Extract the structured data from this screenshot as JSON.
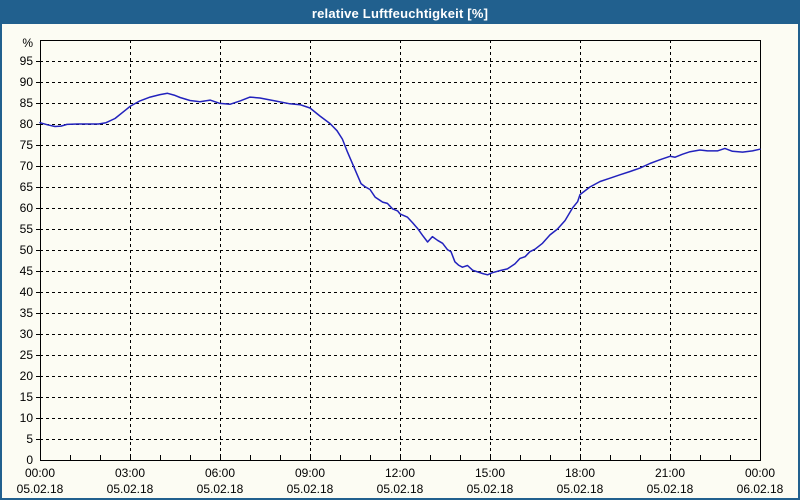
{
  "window": {
    "title": "relative Luftfeuchtigkeit [%]"
  },
  "colors": {
    "title_bar": "#21608e",
    "title_text": "#ffffff",
    "window_border": "#21608e",
    "background": "#fcfcf3",
    "plot_border": "#000000",
    "grid": "#000000",
    "tick": "#000000",
    "label_text": "#000000",
    "curve": "#2222bd"
  },
  "chart_data": {
    "type": "line",
    "title": "relative Luftfeuchtigkeit [%]",
    "ylabel": "%",
    "xlabel": "",
    "ylim": [
      0,
      100
    ],
    "xlim_hours": [
      0,
      24
    ],
    "grid": "dashed",
    "legend": "none",
    "y_unit_label": "%",
    "y_ticks": [
      0,
      5,
      10,
      15,
      20,
      25,
      30,
      35,
      40,
      45,
      50,
      55,
      60,
      65,
      70,
      75,
      80,
      85,
      90,
      95
    ],
    "x_major_step_hours": 3,
    "x_minor_step_hours": 1,
    "x_ticks": [
      {
        "hour": 0,
        "time": "00:00",
        "date": "05.02.18"
      },
      {
        "hour": 3,
        "time": "03:00",
        "date": "05.02.18"
      },
      {
        "hour": 6,
        "time": "06:00",
        "date": "05.02.18"
      },
      {
        "hour": 9,
        "time": "09:00",
        "date": "05.02.18"
      },
      {
        "hour": 12,
        "time": "12:00",
        "date": "05.02.18"
      },
      {
        "hour": 15,
        "time": "15:00",
        "date": "05.02.18"
      },
      {
        "hour": 18,
        "time": "18:00",
        "date": "05.02.18"
      },
      {
        "hour": 21,
        "time": "21:00",
        "date": "05.02.18"
      },
      {
        "hour": 24,
        "time": "00:00",
        "date": "06.02.18"
      }
    ],
    "series": [
      {
        "name": "relative Luftfeuchtigkeit",
        "unit": "%",
        "points": [
          [
            0,
            80.3
          ],
          [
            0.25,
            79.8
          ],
          [
            0.5,
            79.4
          ],
          [
            0.7,
            79.5
          ],
          [
            0.9,
            79.9
          ],
          [
            1.25,
            80
          ],
          [
            1.6,
            80
          ],
          [
            1.95,
            80
          ],
          [
            2.2,
            80.3
          ],
          [
            2.5,
            81.3
          ],
          [
            2.83,
            83.2
          ],
          [
            3,
            84.2
          ],
          [
            3.33,
            85.5
          ],
          [
            3.67,
            86.4
          ],
          [
            4,
            87
          ],
          [
            4.25,
            87.3
          ],
          [
            4.5,
            86.8
          ],
          [
            4.67,
            86.3
          ],
          [
            5,
            85.6
          ],
          [
            5.33,
            85.3
          ],
          [
            5.67,
            85.7
          ],
          [
            6,
            84.9
          ],
          [
            6.33,
            84.7
          ],
          [
            6.67,
            85.5
          ],
          [
            7,
            86.4
          ],
          [
            7.33,
            86.2
          ],
          [
            7.83,
            85.5
          ],
          [
            8.33,
            84.8
          ],
          [
            8.67,
            84.6
          ],
          [
            9,
            83.8
          ],
          [
            9.33,
            81.9
          ],
          [
            9.67,
            80.1
          ],
          [
            9.9,
            78.4
          ],
          [
            10.08,
            76.4
          ],
          [
            10.25,
            73.3
          ],
          [
            10.42,
            70.5
          ],
          [
            10.58,
            67.8
          ],
          [
            10.7,
            65.8
          ],
          [
            10.83,
            65.1
          ],
          [
            11,
            64.4
          ],
          [
            11.17,
            62.6
          ],
          [
            11.42,
            61.4
          ],
          [
            11.58,
            61.1
          ],
          [
            11.75,
            59.8
          ],
          [
            11.92,
            59.3
          ],
          [
            12,
            58.6
          ],
          [
            12.25,
            57.8
          ],
          [
            12.42,
            56.5
          ],
          [
            12.58,
            55.2
          ],
          [
            12.75,
            53.5
          ],
          [
            12.92,
            51.9
          ],
          [
            13.08,
            53.2
          ],
          [
            13.25,
            52.3
          ],
          [
            13.42,
            51.6
          ],
          [
            13.58,
            50.1
          ],
          [
            13.7,
            49.6
          ],
          [
            13.83,
            47.2
          ],
          [
            13.95,
            46.4
          ],
          [
            14.08,
            45.9
          ],
          [
            14.25,
            46.3
          ],
          [
            14.42,
            45.2
          ],
          [
            14.58,
            44.8
          ],
          [
            14.75,
            44.4
          ],
          [
            14.92,
            44.1
          ],
          [
            15.08,
            44.6
          ],
          [
            15.33,
            45.1
          ],
          [
            15.58,
            45.5
          ],
          [
            15.83,
            46.7
          ],
          [
            16,
            48
          ],
          [
            16.17,
            48.4
          ],
          [
            16.33,
            49.6
          ],
          [
            16.5,
            50.2
          ],
          [
            16.75,
            51.6
          ],
          [
            17,
            53.6
          ],
          [
            17.25,
            55
          ],
          [
            17.5,
            57
          ],
          [
            17.75,
            60
          ],
          [
            17.92,
            61.5
          ],
          [
            18,
            63.2
          ],
          [
            18.33,
            65
          ],
          [
            18.67,
            66.3
          ],
          [
            19,
            67.1
          ],
          [
            19.33,
            67.9
          ],
          [
            19.67,
            68.7
          ],
          [
            20,
            69.5
          ],
          [
            20.33,
            70.6
          ],
          [
            20.67,
            71.5
          ],
          [
            21,
            72.3
          ],
          [
            21.17,
            72.1
          ],
          [
            21.42,
            72.8
          ],
          [
            21.67,
            73.4
          ],
          [
            22,
            73.8
          ],
          [
            22.25,
            73.6
          ],
          [
            22.58,
            73.6
          ],
          [
            22.83,
            74.2
          ],
          [
            23.08,
            73.5
          ],
          [
            23.42,
            73.3
          ],
          [
            23.75,
            73.6
          ],
          [
            24,
            74
          ]
        ]
      }
    ]
  }
}
